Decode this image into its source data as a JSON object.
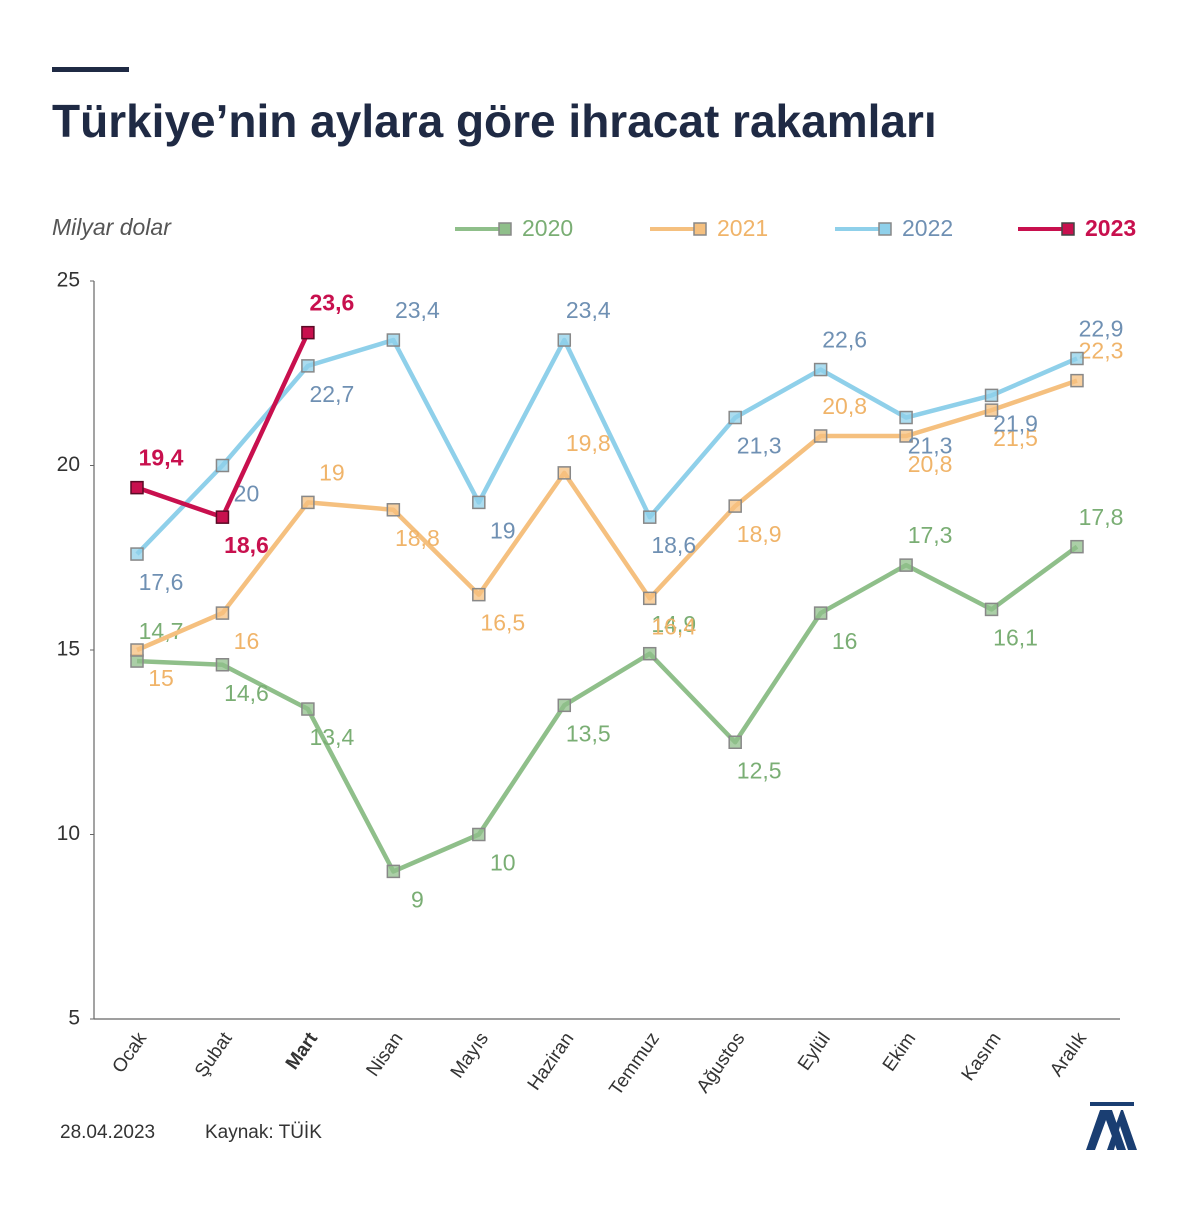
{
  "chart_data": {
    "type": "line",
    "title": "Türkiye’nin aylara göre ihracat rakamları",
    "y_label": "Milyar dolar",
    "date": "28.04.2023",
    "source": "Kaynak: TÜİK",
    "categories": [
      "Ocak",
      "Şubat",
      "Mart",
      "Nisan",
      "Mayıs",
      "Haziran",
      "Temmuz",
      "Ağustos",
      "Eylül",
      "Ekim",
      "Kasım",
      "Aralık"
    ],
    "ylim": [
      5,
      25
    ],
    "yticks": [
      5,
      10,
      15,
      20,
      25
    ],
    "series": [
      {
        "name": "2020",
        "color": "#8fbf8a",
        "label_color": "#7aae74",
        "values": [
          14.7,
          14.6,
          13.4,
          9,
          10,
          13.5,
          14.9,
          12.5,
          16,
          17.3,
          16.1,
          17.8
        ],
        "value_labels": [
          "14,7",
          "14,6",
          "13,4",
          "9",
          "10",
          "13,5",
          "14,9",
          "12,5",
          "16",
          "17,3",
          "16,1",
          "17,8"
        ]
      },
      {
        "name": "2021",
        "color": "#f5c07f",
        "label_color": "#f0b46a",
        "values": [
          15,
          16,
          19,
          18.8,
          16.5,
          19.8,
          16.4,
          18.9,
          20.8,
          20.8,
          21.5,
          22.3
        ],
        "value_labels": [
          "15",
          "16",
          "19",
          "18,8",
          "16,5",
          "19,8",
          "16,4",
          "18,9",
          "20,8",
          "20,8",
          "21,5",
          "22,3"
        ]
      },
      {
        "name": "2022",
        "color": "#8fd0ea",
        "label_color": "#6f90b3",
        "values": [
          17.6,
          20,
          22.7,
          23.4,
          19,
          23.4,
          18.6,
          21.3,
          22.6,
          21.3,
          21.9,
          22.9
        ],
        "value_labels": [
          "17,6",
          "20",
          "22,7",
          "23,4",
          "19",
          "23,4",
          "18,6",
          "21,3",
          "22,6",
          "21,3",
          "21,9",
          "22,9"
        ]
      },
      {
        "name": "2023",
        "color": "#c8104e",
        "label_color": "#c8104e",
        "values": [
          19.4,
          18.6,
          23.6,
          null,
          null,
          null,
          null,
          null,
          null,
          null,
          null,
          null
        ],
        "value_labels": [
          "19,4",
          "18,6",
          "23,6",
          null,
          null,
          null,
          null,
          null,
          null,
          null,
          null,
          null
        ]
      }
    ]
  }
}
